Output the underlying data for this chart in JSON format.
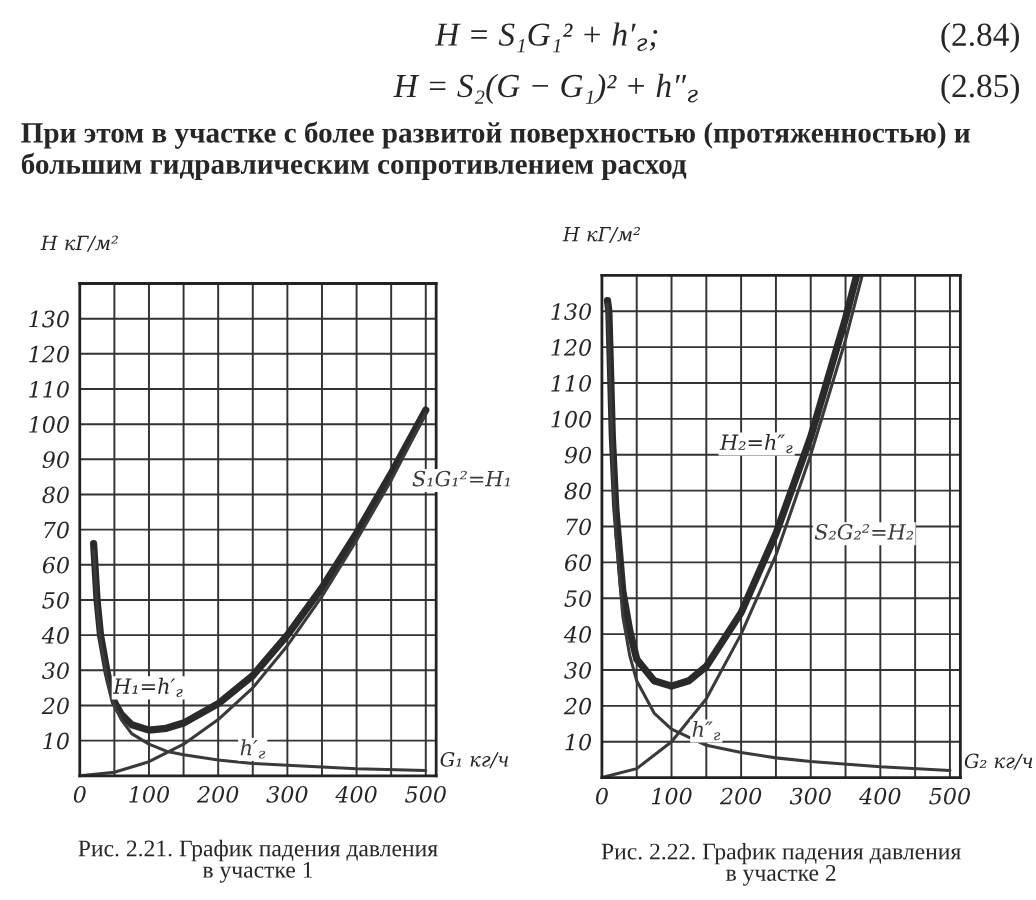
{
  "chart_data": [
    {
      "type": "other",
      "annotations": [
        "H = S₁G₁² + h′$_{г}$;",
        "(2.84)",
        "H = S₂(G − G₁)² + h″$_{г}$",
        "(2.85)",
        "При этом в участке с более развитой поверхностью (протяженностью) и большим гидравлическим сопротивлением расход"
      ]
    },
    {
      "type": "line",
      "ylabel": "H кГ/м²",
      "xlabel": "G₁ кг/ч",
      "xlim": [
        0,
        515
      ],
      "ylim": [
        0,
        140
      ],
      "grid": true,
      "legend": false,
      "xticks": [
        0,
        {
          "value": 50,
          "label": null
        },
        100,
        {
          "value": 150,
          "label": null
        },
        200,
        {
          "value": 250,
          "label": null
        },
        300,
        {
          "value": 350,
          "label": null
        },
        400,
        {
          "value": 450,
          "label": null
        },
        500
      ],
      "yticks": [
        10,
        20,
        30,
        40,
        50,
        60,
        70,
        80,
        90,
        100,
        110,
        120,
        130
      ],
      "annotations": [
        "Рис. 2.21. График падения давления\nв участке 1"
      ],
      "series": [
        {
          "name": "H₁=h′$_{г}$",
          "color": "#2a2a2a",
          "x": [
            20,
            25,
            30,
            40,
            50,
            60,
            75,
            100,
            125,
            150,
            200,
            250,
            300,
            350,
            400,
            450,
            500
          ],
          "values": [
            66,
            50,
            40,
            29,
            21,
            17.5,
            14.5,
            13,
            13.5,
            15,
            20.5,
            28.5,
            40,
            53.5,
            69,
            86,
            104
          ]
        },
        {
          "name": "S₁G₁²=H₁",
          "color": "#3a3a3a",
          "x": [
            0,
            50,
            100,
            150,
            200,
            250,
            300,
            350,
            400,
            450,
            500
          ],
          "values": [
            0,
            1,
            4,
            9,
            16,
            25,
            37,
            51,
            67,
            84,
            103
          ]
        },
        {
          "name": "h′$_{г}$",
          "color": "#3a3a3a",
          "x": [
            20,
            25,
            30,
            40,
            50,
            60,
            75,
            100,
            125,
            150,
            200,
            250,
            300,
            400,
            500
          ],
          "values": [
            64,
            48,
            38,
            27,
            20,
            16,
            12,
            9,
            7,
            6,
            4.5,
            3.5,
            3,
            2,
            1.5
          ]
        }
      ]
    },
    {
      "type": "line",
      "ylabel": "H кГ/м²",
      "xlabel": "G₂ кг/ч",
      "xlim": [
        0,
        515
      ],
      "ylim": [
        0,
        140
      ],
      "grid": true,
      "legend": false,
      "xticks": [
        0,
        {
          "value": 50,
          "label": null
        },
        100,
        {
          "value": 150,
          "label": null
        },
        200,
        {
          "value": 250,
          "label": null
        },
        300,
        {
          "value": 350,
          "label": null
        },
        400,
        {
          "value": 450,
          "label": null
        },
        500
      ],
      "yticks": [
        10,
        20,
        30,
        40,
        50,
        60,
        70,
        80,
        90,
        100,
        110,
        120,
        130
      ],
      "annotations": [
        "Рис. 2.22. График падения давления\nв участке 2"
      ],
      "series": [
        {
          "name": "H₂=h″$_{г}$",
          "color": "#2a2a2a",
          "x": [
            8,
            10,
            15,
            20,
            30,
            40,
            50,
            75,
            100,
            125,
            150,
            200,
            250,
            300,
            350,
            366
          ],
          "values": [
            133,
            130,
            95,
            75,
            52,
            41,
            33,
            27,
            25.5,
            27,
            31,
            46,
            68,
            95,
            128,
            140
          ]
        },
        {
          "name": "S₂G₂²=H₂",
          "color": "#3a3a3a",
          "x": [
            0,
            50,
            100,
            150,
            200,
            250,
            300,
            350,
            374
          ],
          "values": [
            0,
            2.5,
            10,
            22,
            40,
            62,
            90,
            122,
            140
          ]
        },
        {
          "name": "h″$_{г}$",
          "color": "#3a3a3a",
          "x": [
            8,
            10,
            15,
            20,
            30,
            40,
            50,
            75,
            100,
            150,
            200,
            250,
            300,
            400,
            500
          ],
          "values": [
            132,
            120,
            90,
            68,
            45,
            34,
            27,
            18,
            13.5,
            9,
            7,
            5.5,
            4.5,
            3,
            2
          ]
        }
      ]
    }
  ]
}
